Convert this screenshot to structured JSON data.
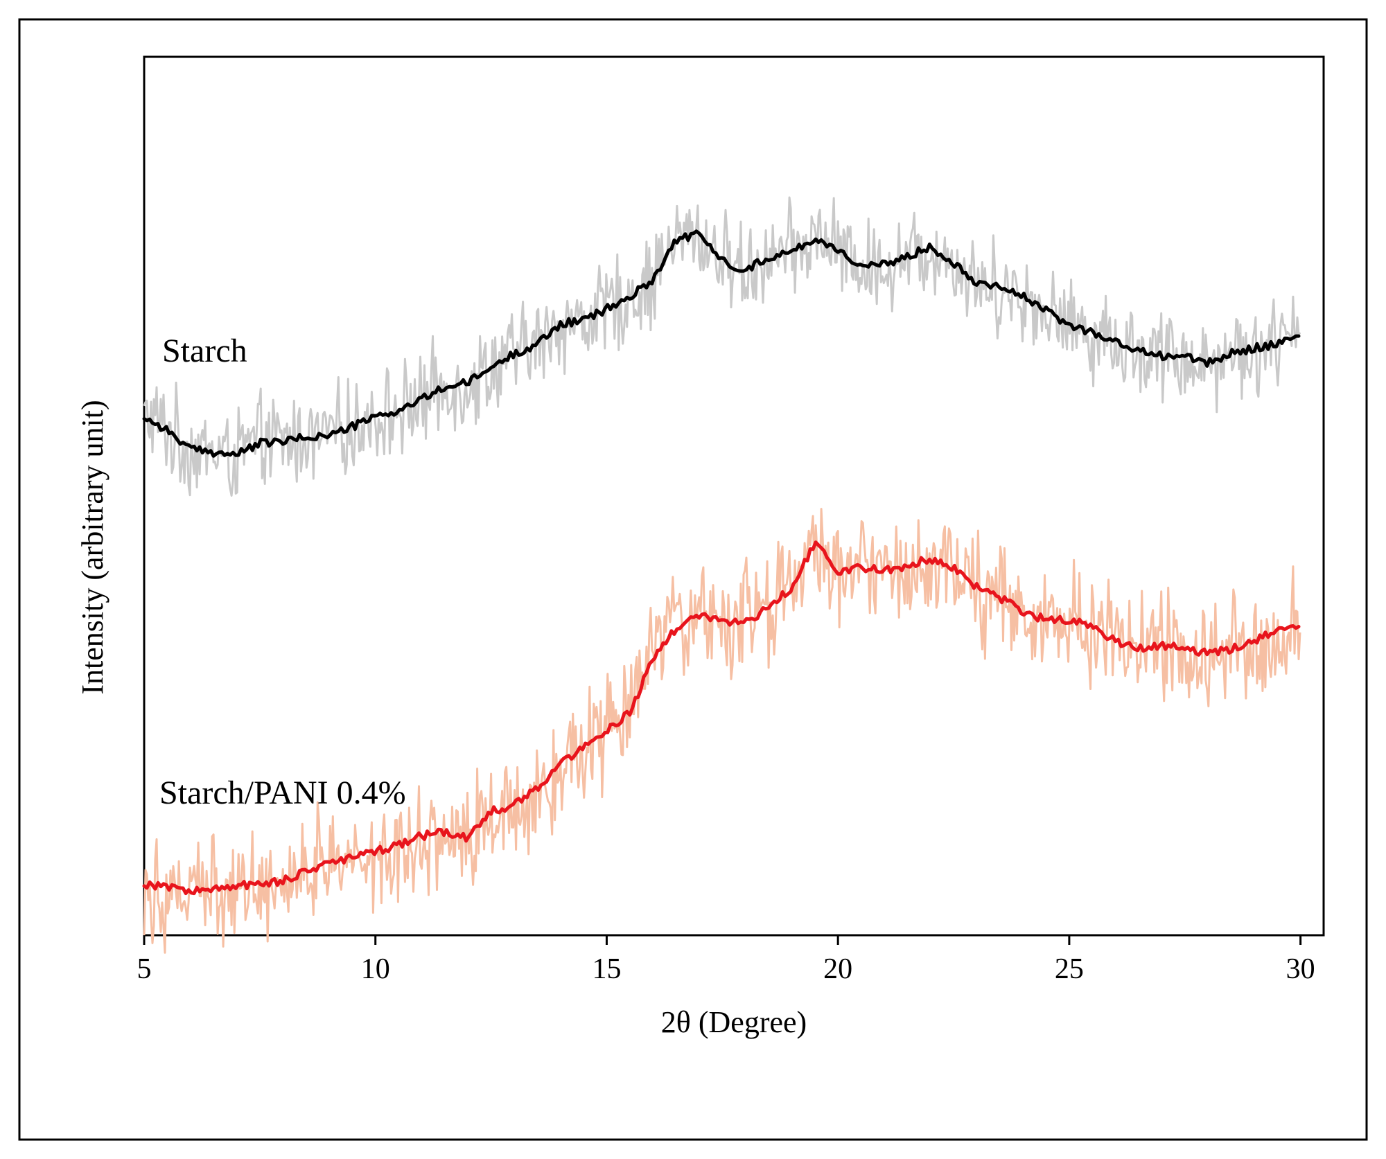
{
  "chart_data": {
    "type": "line",
    "xlabel": "2θ (Degree)",
    "ylabel": "Intensity (arbitrary unit)",
    "xlim": [
      5,
      30.5
    ],
    "ylim": [
      0,
      100
    ],
    "x_ticks": [
      5,
      10,
      15,
      20,
      25,
      30
    ],
    "y_ticks_labeled": false,
    "grid": false,
    "legend": "none",
    "series": [
      {
        "name": "Starch",
        "label_position": "upper-left",
        "smoothed_color": "#000000",
        "raw_color": "#c9c9c9",
        "raw_noise_amplitude": 4.5,
        "x": [
          5,
          5.5,
          6,
          6.5,
          7,
          7.5,
          8,
          8.5,
          9,
          9.5,
          10,
          10.5,
          11,
          11.5,
          12,
          12.5,
          13,
          13.5,
          14,
          14.5,
          15,
          15.5,
          16,
          16.5,
          17,
          17.5,
          18,
          18.5,
          19,
          19.5,
          20,
          20.5,
          21,
          21.5,
          22,
          22.5,
          23,
          23.5,
          24,
          24.5,
          25,
          25.5,
          26,
          26.5,
          27,
          27.5,
          28,
          28.5,
          29,
          29.5,
          30
        ],
        "values": [
          59.0,
          57.5,
          55.3,
          55.0,
          54.7,
          56.0,
          56.2,
          56.7,
          56.9,
          57.9,
          59.0,
          59.7,
          61.0,
          62.4,
          62.9,
          64.6,
          66.2,
          67.3,
          69.6,
          70.0,
          71.3,
          72.6,
          74.7,
          79.2,
          79.8,
          76.8,
          75.7,
          77.2,
          77.8,
          79.3,
          78.1,
          76.1,
          76.3,
          77.3,
          78.4,
          76.6,
          74.3,
          74.0,
          72.7,
          71.1,
          69.4,
          68.7,
          67.5,
          66.5,
          66.0,
          65.9,
          65.1,
          66.2,
          66.9,
          67.3,
          68.1
        ]
      },
      {
        "name": "Starch/PANI 0.4%",
        "label_position": "lower-left",
        "smoothed_color": "#e8141c",
        "raw_color": "#f6bfa3",
        "raw_noise_amplitude": 5.5,
        "x": [
          5,
          5.5,
          6,
          6.5,
          7,
          7.5,
          8,
          8.5,
          9,
          9.5,
          10,
          10.5,
          11,
          11.5,
          12,
          12.5,
          13,
          13.5,
          14,
          14.5,
          15,
          15.5,
          16,
          16.5,
          17,
          17.5,
          18,
          18.5,
          19,
          19.5,
          20,
          20.5,
          21,
          21.5,
          22,
          22.5,
          23,
          23.5,
          24,
          24.5,
          25,
          25.5,
          26,
          26.5,
          27,
          27.5,
          28,
          28.5,
          29,
          29.5,
          30
        ],
        "values": [
          5.8,
          5.6,
          5.0,
          5.2,
          5.6,
          5.9,
          6.2,
          7.3,
          8.2,
          8.8,
          9.5,
          10.3,
          11.3,
          11.8,
          11.0,
          14.1,
          14.8,
          16.8,
          19.5,
          21.5,
          23.3,
          25.3,
          31.5,
          34.9,
          36.5,
          35.6,
          35.6,
          37.3,
          39.6,
          44.6,
          41.4,
          41.9,
          41.6,
          42.0,
          42.9,
          41.8,
          39.7,
          38.4,
          36.8,
          35.9,
          35.8,
          35.2,
          33.5,
          32.6,
          33.0,
          32.6,
          32.1,
          32.6,
          33.6,
          34.6,
          35.0
        ]
      }
    ]
  }
}
